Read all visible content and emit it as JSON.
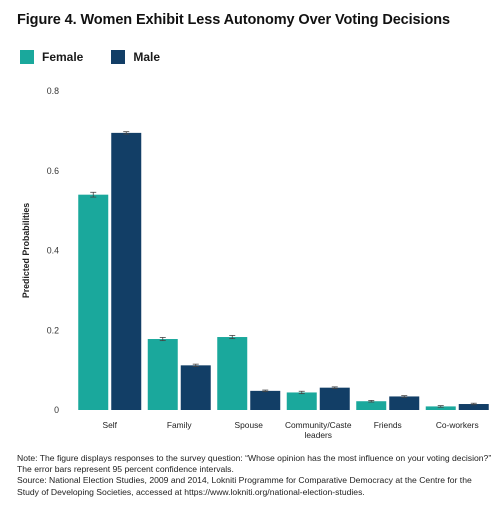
{
  "title": "Figure 4. Women Exhibit Less Autonomy Over Voting Decisions",
  "colors": {
    "female": "#1aa89c",
    "male": "#123e66",
    "error_bar": "#444444",
    "tick_text": "#333333"
  },
  "notes": [
    "Note: The figure displays responses to the survey question: “Whose opinion has the most influence on your voting decision?”",
    "The error bars represent 95 percent confidence intervals.",
    "Source: National Election Studies, 2009 and 2014, Lokniti Programme for Comparative Democracy at the Centre for the",
    "Study of Developing Societies, accessed at https://www.lokniti.org/national-election-studies."
  ],
  "chart_data": {
    "type": "bar",
    "title": "Figure 4. Women Exhibit Less Autonomy Over Voting Decisions",
    "xlabel": "",
    "ylabel": "Predicted Probabilities",
    "ylim": [
      0,
      0.8
    ],
    "yticks": [
      0,
      0.2,
      0.4,
      0.6,
      0.8
    ],
    "ytick_labels": [
      "0",
      "0.2",
      "0.4",
      "0.6",
      "0.8"
    ],
    "categories": [
      "Self",
      "Family",
      "Spouse",
      "Community/Caste leaders",
      "Friends",
      "Co-workers"
    ],
    "category_label_lines": [
      [
        "Self"
      ],
      [
        "Family"
      ],
      [
        "Spouse"
      ],
      [
        "Community/Caste",
        "leaders"
      ],
      [
        "Friends"
      ],
      [
        "Co-workers"
      ]
    ],
    "legend_position": "top-left",
    "grid": false,
    "series": [
      {
        "name": "Female",
        "values": [
          0.54,
          0.178,
          0.183,
          0.044,
          0.022,
          0.009
        ],
        "ci": [
          [
            0.534,
            0.546
          ],
          [
            0.174,
            0.182
          ],
          [
            0.179,
            0.187
          ],
          [
            0.041,
            0.047
          ],
          [
            0.02,
            0.024
          ],
          [
            0.007,
            0.011
          ]
        ]
      },
      {
        "name": "Male",
        "values": [
          0.695,
          0.112,
          0.048,
          0.056,
          0.034,
          0.015
        ],
        "ci": [
          [
            0.692,
            0.698
          ],
          [
            0.109,
            0.115
          ],
          [
            0.046,
            0.05
          ],
          [
            0.054,
            0.058
          ],
          [
            0.032,
            0.036
          ],
          [
            0.013,
            0.017
          ]
        ]
      }
    ]
  }
}
